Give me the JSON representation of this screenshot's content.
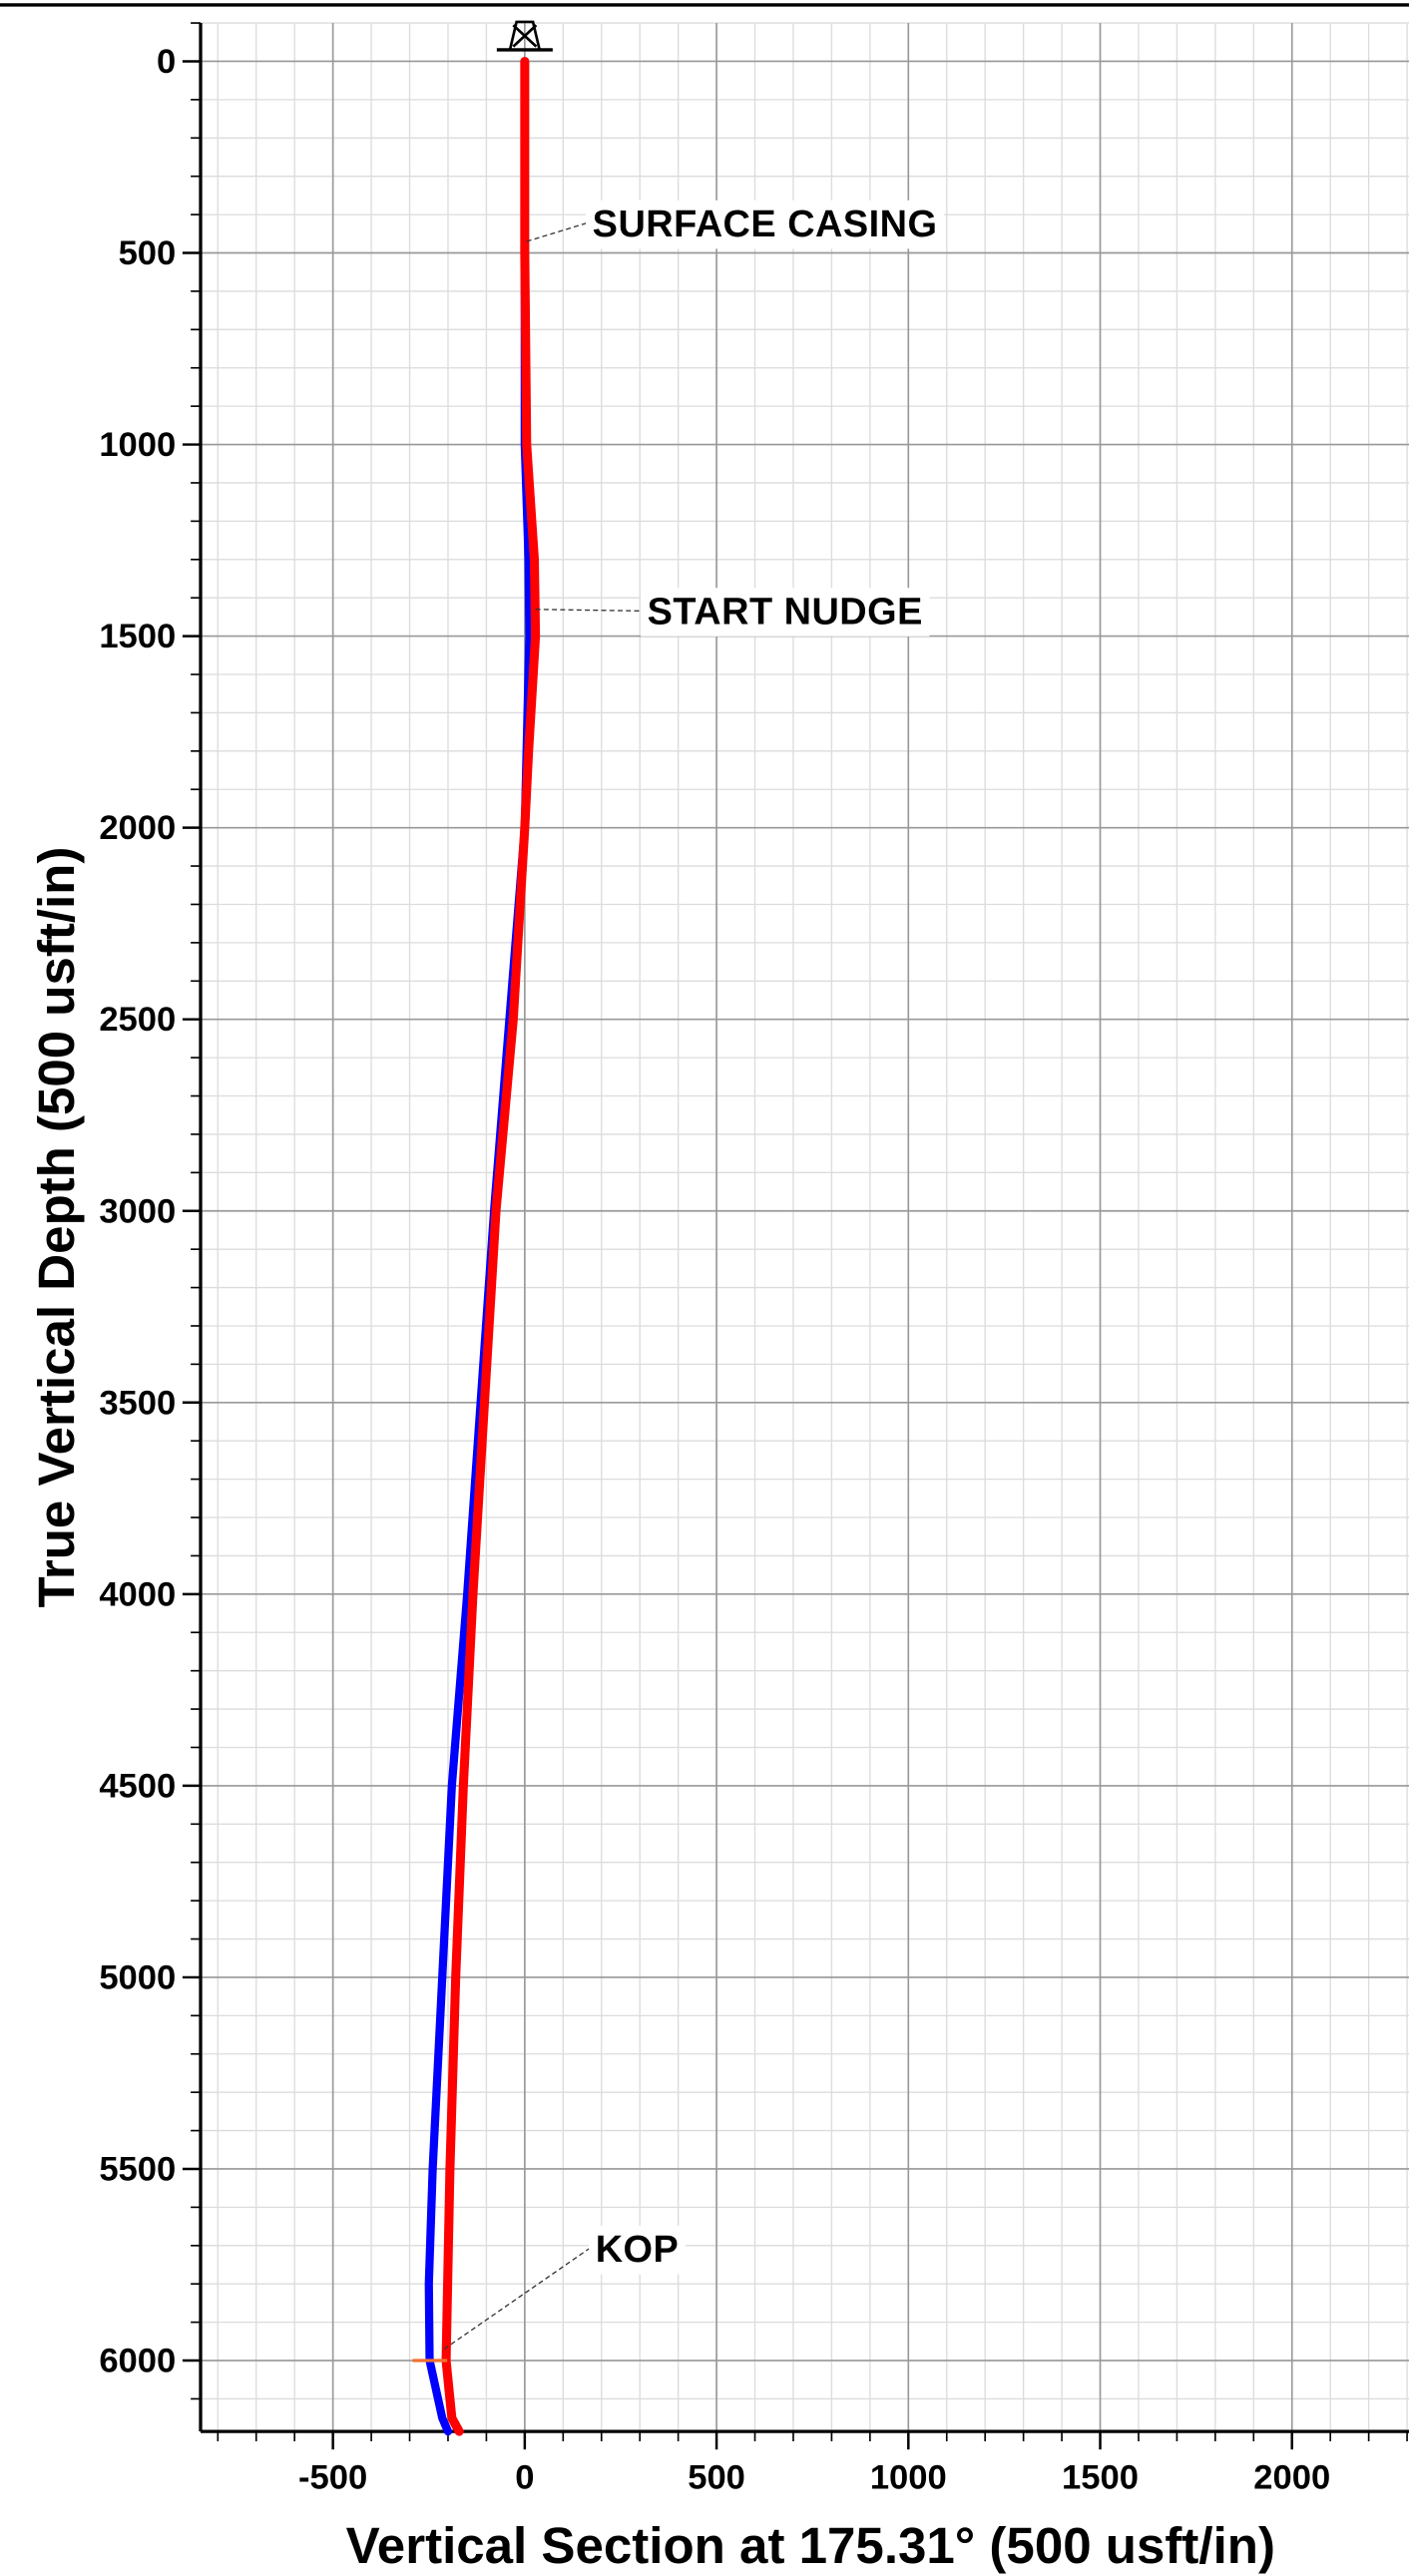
{
  "chart_data": {
    "type": "line",
    "x_label": "Vertical Section at 175.31° (500 usft/in)",
    "y_label": "True Vertical Depth (500 usft/in)",
    "xlim": [
      -845,
      2305
    ],
    "ylim": [
      6185,
      -100
    ],
    "xticks": [
      -500,
      0,
      500,
      1000,
      1500,
      2000
    ],
    "yticks": [
      0,
      500,
      1000,
      1500,
      2000,
      2500,
      3000,
      3500,
      4000,
      4500,
      5000,
      5500,
      6000
    ],
    "grid": true,
    "minor_grid_step": 100,
    "series": [
      {
        "color": "#0000ff",
        "x": [
          0,
          0,
          0,
          10,
          12,
          0,
          -40,
          -80,
          -115,
          -150,
          -190,
          -215,
          -240,
          -250,
          -248,
          -215,
          -200
        ],
        "values": [
          0,
          500,
          1000,
          1300,
          1500,
          2000,
          2500,
          3000,
          3500,
          4000,
          4500,
          5000,
          5500,
          5800,
          6000,
          6150,
          6185
        ]
      },
      {
        "color": "#ff0000",
        "x": [
          0,
          0,
          5,
          25,
          28,
          10,
          0,
          -30,
          -75,
          -105,
          -135,
          -160,
          -180,
          -195,
          -205,
          -190,
          -171
        ],
        "values": [
          0,
          500,
          1000,
          1300,
          1500,
          1800,
          2000,
          2500,
          3000,
          3500,
          4000,
          4500,
          5000,
          5500,
          6000,
          6150,
          6185
        ]
      }
    ],
    "annotations": [
      {
        "text": "SURFACE CASING",
        "x": 5,
        "y": 470
      },
      {
        "text": "START NUDGE",
        "x": 28,
        "y": 1430
      },
      {
        "text": "KOP",
        "x": -210,
        "y": 5970
      }
    ]
  }
}
